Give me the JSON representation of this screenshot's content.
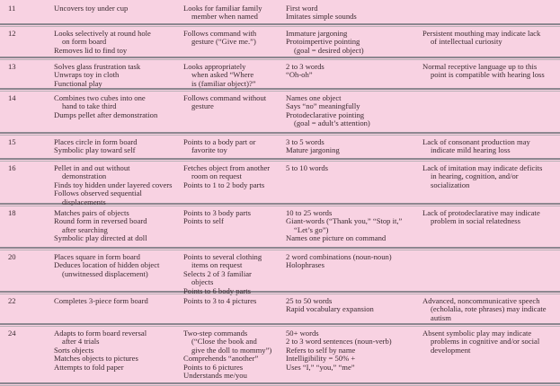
{
  "rows": [
    {
      "age": "11",
      "cells": [
        [
          [
            "Uncovers toy under cup"
          ]
        ],
        [
          [
            "Looks for familiar family",
            "member when named"
          ]
        ],
        [
          [
            "First word"
          ],
          [
            "Imitates simple sounds"
          ]
        ],
        []
      ]
    },
    {
      "age": "12",
      "cells": [
        [
          [
            "Looks selectively at round hole",
            "on form board"
          ],
          [
            "Removes lid to find toy"
          ]
        ],
        [
          [
            "Follows command with",
            "gesture (“Give me.”)"
          ]
        ],
        [
          [
            "Immature jargoning"
          ],
          [
            "Protoimpertive pointing",
            "(goal = desired object)"
          ]
        ],
        [
          [
            "Persistent mouthing may indicate lack",
            "of intellectual curiosity"
          ]
        ]
      ]
    },
    {
      "age": "13",
      "cells": [
        [
          [
            "Solves glass frustration task"
          ],
          [
            "Unwraps toy in cloth"
          ],
          [
            "Functional play"
          ]
        ],
        [
          [
            "Looks appropriately",
            "when asked “Where",
            "is (familiar object)?”"
          ]
        ],
        [
          [
            "2 to 3 words"
          ],
          [
            "“Oh-oh”"
          ]
        ],
        [
          [
            "Normal receptive language up to this",
            "point is compatible with hearing loss"
          ]
        ]
      ]
    },
    {
      "age": "14",
      "cells": [
        [
          [
            "Combines two cubes into one",
            "hand to take third"
          ],
          [
            "Dumps pellet after demonstration"
          ]
        ],
        [
          [
            "Follows command without",
            "gesture"
          ]
        ],
        [
          [
            "Names one object"
          ],
          [
            "Says “no” meaningfully"
          ],
          [
            "Protodeclarative pointing",
            "(goal = adult’s attention)"
          ]
        ],
        []
      ]
    },
    {
      "age": "15",
      "cells": [
        [
          [
            "Places circle in form board"
          ],
          [
            "Symbolic play toward self"
          ]
        ],
        [
          [
            "Points to a body part or",
            "favorite toy"
          ]
        ],
        [
          [
            "3 to 5 words"
          ],
          [
            "Mature jargoning"
          ]
        ],
        [
          [
            "Lack of consonant production may",
            "indicate mild hearing loss"
          ]
        ]
      ]
    },
    {
      "age": "16",
      "cells": [
        [
          [
            "Pellet in and out without",
            "demonstration"
          ],
          [
            "Finds toy hidden under layered covers"
          ],
          [
            "Follows observed sequential",
            "displacements"
          ]
        ],
        [
          [
            "Fetches object from another",
            "room on request"
          ],
          [
            "Points to 1 to 2 body parts"
          ]
        ],
        [
          [
            "5 to 10 words"
          ]
        ],
        [
          [
            "Lack of imitation may indicate deficits",
            "in hearing, cognition, and/or",
            "socialization"
          ]
        ]
      ]
    },
    {
      "age": "18",
      "cells": [
        [
          [
            "Matches pairs of objects"
          ],
          [
            "Round form in reversed board",
            "after searching"
          ],
          [
            "Symbolic play directed at doll"
          ]
        ],
        [
          [
            "Points to 3 body parts"
          ],
          [
            "Points to self"
          ]
        ],
        [
          [
            "10 to 25 words"
          ],
          [
            "Giant-words (“Thank you,” “Stop it,”",
            "“Let’s go”)"
          ],
          [
            "Names one picture on command"
          ]
        ],
        [
          [
            "Lack of protodeclarative may indicate",
            "problem in social relatedness"
          ]
        ]
      ]
    },
    {
      "age": "20",
      "cells": [
        [
          [
            "Places square in form board"
          ],
          [
            "Deduces location of hidden object",
            "(unwitnessed displacement)"
          ]
        ],
        [
          [
            "Points to several clothing",
            "items on request"
          ],
          [
            "Selects 2 of 3 familiar",
            "objects"
          ],
          [
            "Points to 6 body parts"
          ]
        ],
        [
          [
            "2 word combinations (noun-noun)"
          ],
          [
            "Holophrases"
          ]
        ],
        []
      ]
    },
    {
      "age": "22",
      "cells": [
        [
          [
            "Completes 3-piece form board"
          ]
        ],
        [
          [
            "Points to 3 to 4 pictures"
          ]
        ],
        [
          [
            "25 to 50 words"
          ],
          [
            "Rapid vocabulary expansion"
          ]
        ],
        [
          [
            "Advanced, noncommunicative speech",
            "(echolalia, rote phrases) may indicate",
            "autism"
          ]
        ]
      ]
    },
    {
      "age": "24",
      "cells": [
        [
          [
            "Adapts to form board reversal",
            "after 4 trials"
          ],
          [
            "Sorts objects"
          ],
          [
            "Matches objects to pictures"
          ],
          [
            "Attempts to fold paper"
          ]
        ],
        [
          [
            "Two-step commands",
            "(“Close the book and",
            "give the doll to mommy”)"
          ],
          [
            "Comprehends “another”"
          ],
          [
            "Points to 6 pictures"
          ],
          [
            "Understands me/you"
          ]
        ],
        [
          [
            "50+ words"
          ],
          [
            "2 to 3 word sentences (noun-verb)"
          ],
          [
            "Refers to self by name"
          ],
          [
            "Intelligibility = 50% +"
          ],
          [
            "Uses “I,” “you,” “me”"
          ]
        ],
        [
          [
            "Absent symbolic play may indicate",
            "problems in cognitive and/or social",
            "development"
          ]
        ]
      ]
    }
  ]
}
